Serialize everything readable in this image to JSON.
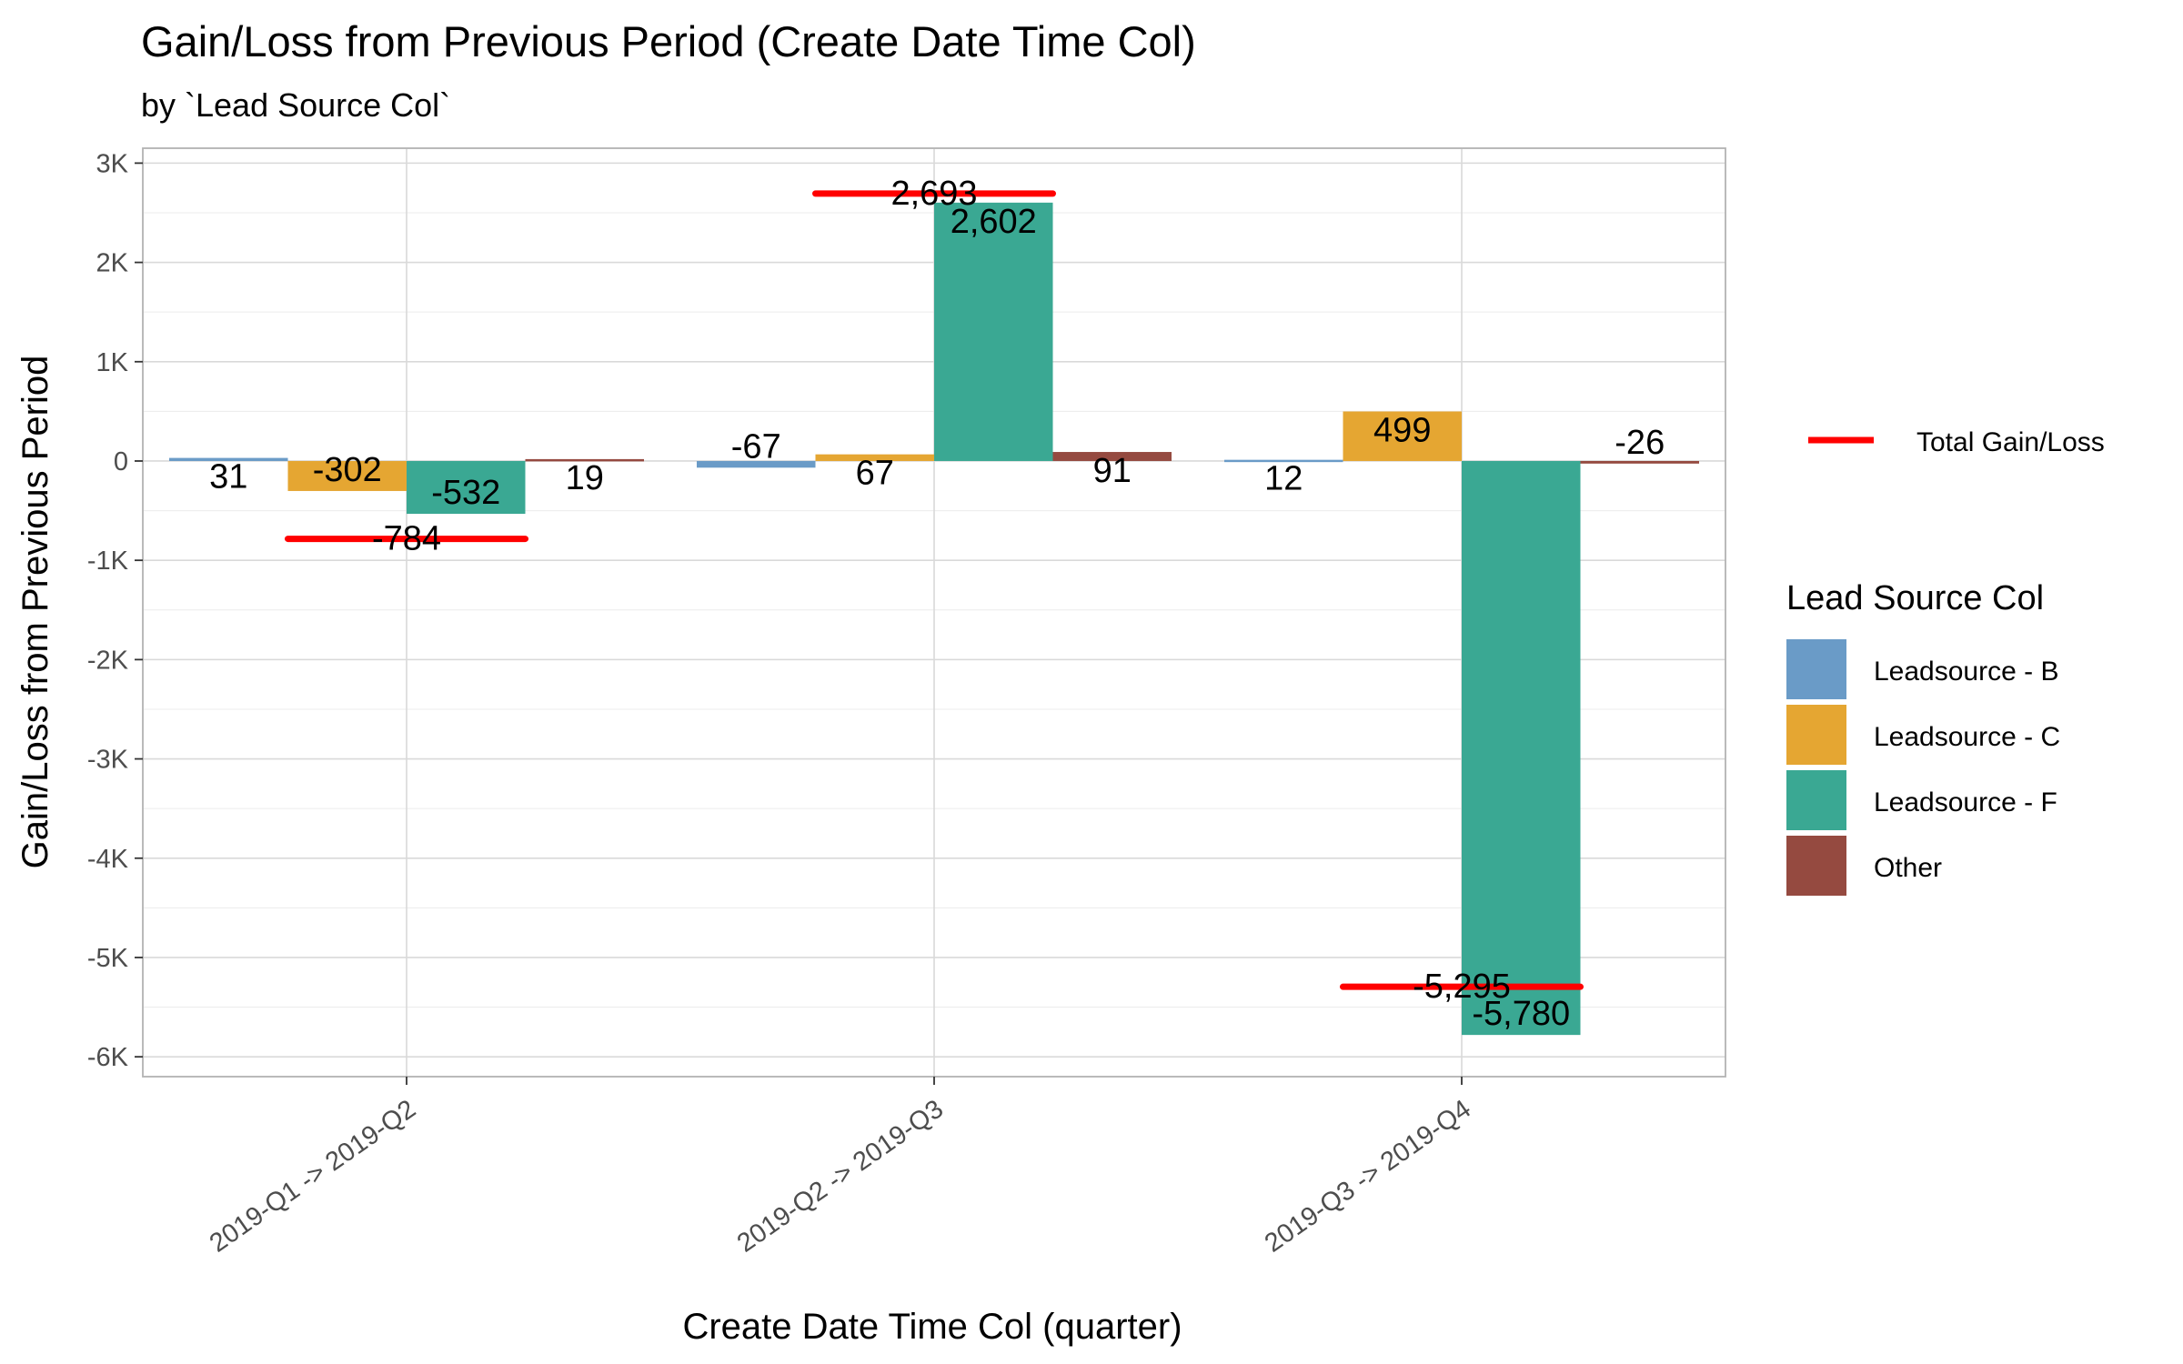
{
  "chart_data": {
    "type": "bar",
    "title": "Gain/Loss  from Previous Period (Create Date Time Col)",
    "subtitle": "by `Lead Source Col`",
    "xlabel": "Create Date Time Col (quarter)",
    "ylabel": "Gain/Loss  from Previous Period",
    "ylim": [
      -6200,
      3150
    ],
    "yticks": [
      3000,
      2000,
      1000,
      0,
      -1000,
      -2000,
      -3000,
      -4000,
      -5000,
      -6000
    ],
    "ytick_labels": [
      "3K",
      "2K",
      "1K",
      "0",
      "-1K",
      "-2K",
      "-3K",
      "-4K",
      "-5K",
      "-6K"
    ],
    "grid": true,
    "categories": [
      "2019-Q1 -> 2019-Q2",
      "2019-Q2 -> 2019-Q3",
      "2019-Q3 -> 2019-Q4"
    ],
    "series": [
      {
        "name": "Leadsource - B",
        "color": "#6a9bc7",
        "values": [
          31,
          -67,
          12
        ],
        "labels": [
          "31",
          "-67",
          "12"
        ]
      },
      {
        "name": "Leadsource - C",
        "color": "#e5a632",
        "values": [
          -302,
          67,
          499
        ],
        "labels": [
          "-302",
          "67",
          "499"
        ]
      },
      {
        "name": "Leadsource - F",
        "color": "#3aa893",
        "values": [
          -532,
          2602,
          -5780
        ],
        "labels": [
          "-532",
          "2,602",
          "-5,780"
        ]
      },
      {
        "name": "Other",
        "color": "#954a40",
        "values": [
          19,
          91,
          -26
        ],
        "labels": [
          "19",
          "91",
          "-26"
        ]
      }
    ],
    "total_line": {
      "name": "Total Gain/Loss",
      "color": "#ff0000",
      "values": [
        -784,
        2693,
        -5295
      ],
      "labels": [
        "-784",
        "2,693",
        "-5,295"
      ]
    },
    "legend": {
      "title": "Lead Source Col",
      "placement": "right"
    }
  }
}
